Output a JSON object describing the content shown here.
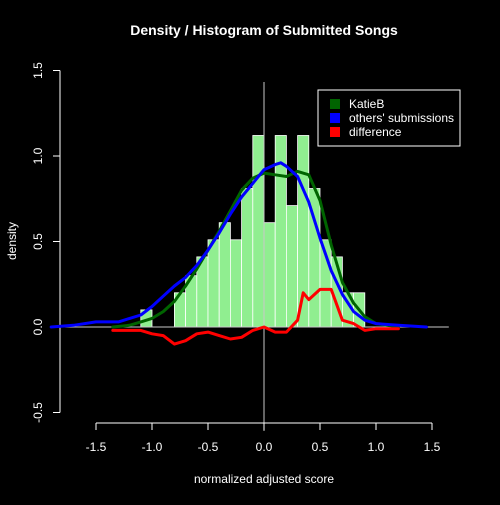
{
  "chart_data": {
    "type": "bar",
    "title": "Density / Histogram of Submitted Songs",
    "xlabel": "normalized adjusted score",
    "ylabel": "density",
    "xlim": [
      -1.9,
      1.65
    ],
    "ylim": [
      -0.55,
      1.55
    ],
    "x_ticks": [
      "-1.5",
      "-1.0",
      "-0.5",
      "0.0",
      "0.5",
      "1.0",
      "1.5"
    ],
    "y_ticks": [
      "-0.5",
      "0.0",
      "0.5",
      "1.0",
      "1.5"
    ],
    "grid": false,
    "legend_position": "top-right",
    "histogram": {
      "bin_width": 0.1,
      "bins": [
        {
          "left": -1.1,
          "value": 0.1
        },
        {
          "left": -1.0,
          "value": 0.0
        },
        {
          "left": -0.9,
          "value": 0.0
        },
        {
          "left": -0.8,
          "value": 0.2
        },
        {
          "left": -0.7,
          "value": 0.3
        },
        {
          "left": -0.6,
          "value": 0.41
        },
        {
          "left": -0.5,
          "value": 0.51
        },
        {
          "left": -0.4,
          "value": 0.61
        },
        {
          "left": -0.3,
          "value": 0.51
        },
        {
          "left": -0.2,
          "value": 0.81
        },
        {
          "left": -0.1,
          "value": 1.12
        },
        {
          "left": 0.0,
          "value": 0.61
        },
        {
          "left": 0.1,
          "value": 1.12
        },
        {
          "left": 0.2,
          "value": 0.71
        },
        {
          "left": 0.3,
          "value": 1.12
        },
        {
          "left": 0.4,
          "value": 0.81
        },
        {
          "left": 0.5,
          "value": 0.51
        },
        {
          "left": 0.6,
          "value": 0.41
        },
        {
          "left": 0.7,
          "value": 0.2
        },
        {
          "left": 0.8,
          "value": 0.2
        },
        {
          "left": 0.9,
          "value": 0.0
        }
      ]
    },
    "series": [
      {
        "name": "KatieB",
        "color": "#006400",
        "x": [
          -1.35,
          -1.2,
          -1.1,
          -1.0,
          -0.9,
          -0.8,
          -0.7,
          -0.6,
          -0.5,
          -0.4,
          -0.3,
          -0.2,
          -0.1,
          0.0,
          0.1,
          0.2,
          0.3,
          0.4,
          0.5,
          0.6,
          0.7,
          0.8,
          0.9,
          1.0,
          1.1,
          1.2
        ],
        "y": [
          0.0,
          0.01,
          0.03,
          0.05,
          0.09,
          0.15,
          0.24,
          0.34,
          0.45,
          0.56,
          0.68,
          0.8,
          0.87,
          0.9,
          0.89,
          0.88,
          0.91,
          0.89,
          0.74,
          0.48,
          0.26,
          0.14,
          0.06,
          0.02,
          0.01,
          0.0
        ]
      },
      {
        "name": "others' submissions",
        "color": "#0000ff",
        "x": [
          -1.9,
          -1.7,
          -1.5,
          -1.3,
          -1.2,
          -1.1,
          -1.0,
          -0.9,
          -0.8,
          -0.7,
          -0.6,
          -0.5,
          -0.4,
          -0.3,
          -0.2,
          -0.1,
          0.0,
          0.1,
          0.15,
          0.2,
          0.3,
          0.4,
          0.5,
          0.6,
          0.7,
          0.8,
          0.9,
          1.0,
          1.2,
          1.45
        ],
        "y": [
          0.0,
          0.01,
          0.03,
          0.03,
          0.05,
          0.07,
          0.12,
          0.18,
          0.24,
          0.29,
          0.36,
          0.45,
          0.55,
          0.66,
          0.76,
          0.84,
          0.92,
          0.95,
          0.96,
          0.94,
          0.88,
          0.73,
          0.52,
          0.33,
          0.19,
          0.09,
          0.04,
          0.02,
          0.01,
          0.0
        ]
      },
      {
        "name": "difference",
        "color": "#ff0000",
        "x": [
          -1.35,
          -1.2,
          -1.1,
          -1.0,
          -0.9,
          -0.8,
          -0.7,
          -0.6,
          -0.5,
          -0.4,
          -0.3,
          -0.2,
          -0.1,
          0.0,
          0.1,
          0.2,
          0.3,
          0.35,
          0.4,
          0.5,
          0.6,
          0.7,
          0.8,
          0.9,
          1.0,
          1.2
        ],
        "y": [
          -0.02,
          -0.02,
          -0.02,
          -0.04,
          -0.05,
          -0.1,
          -0.08,
          -0.04,
          -0.03,
          -0.05,
          -0.07,
          -0.06,
          -0.02,
          0.0,
          -0.03,
          -0.03,
          0.04,
          0.2,
          0.16,
          0.22,
          0.22,
          0.04,
          0.02,
          -0.02,
          -0.01,
          -0.01
        ]
      }
    ]
  }
}
